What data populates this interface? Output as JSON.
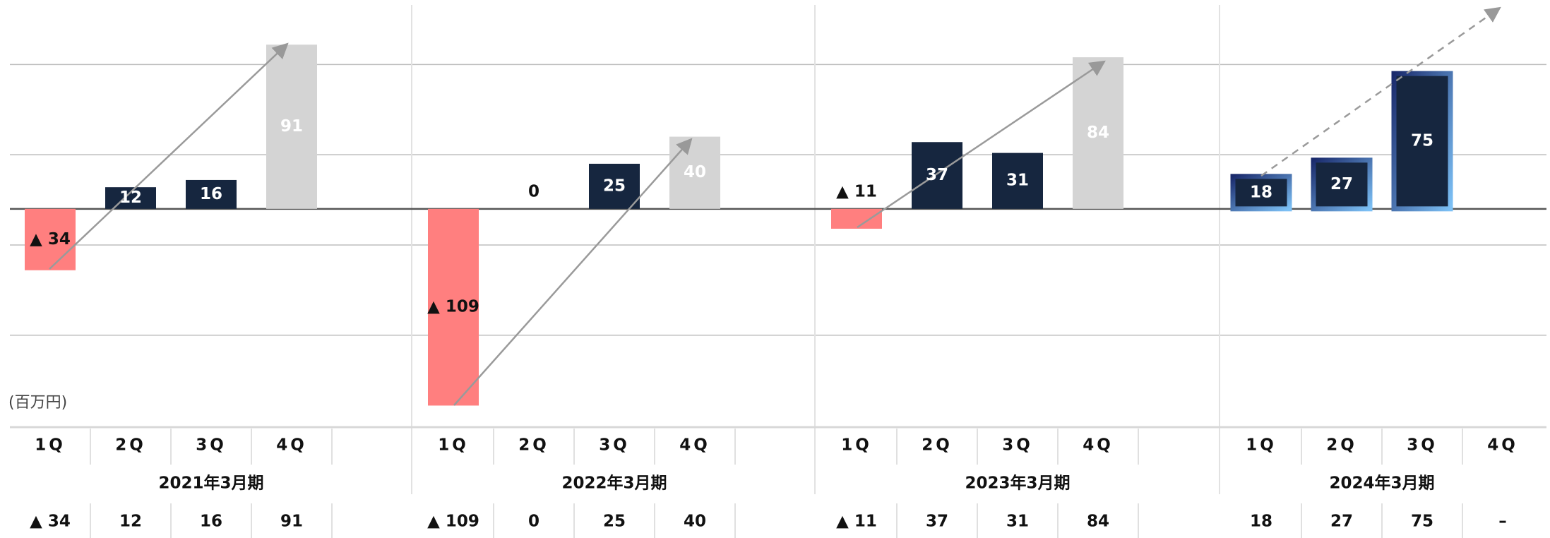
{
  "chart_data": {
    "type": "bar",
    "unit_label": "(百万円)",
    "periods": [
      "2021年3月期",
      "2022年3月期",
      "2023年3月期",
      "2024年3月期"
    ],
    "categories": [
      "1Q",
      "2Q",
      "3Q",
      "4Q",
      "1Q",
      "2Q",
      "3Q",
      "4Q",
      "1Q",
      "2Q",
      "3Q",
      "4Q",
      "1Q",
      "2Q",
      "3Q",
      "4Q"
    ],
    "values": [
      -34,
      12,
      16,
      91,
      -109,
      0,
      25,
      40,
      -11,
      37,
      31,
      84,
      18,
      27,
      75,
      null
    ],
    "value_labels": [
      "▲ 34",
      "12",
      "16",
      "91",
      "▲ 109",
      "0",
      "25",
      "40",
      "▲ 11",
      "37",
      "31",
      "84",
      "18",
      "27",
      "75",
      "–"
    ],
    "colors": [
      "#ff7f7f",
      "#16263f",
      "#16263f",
      "#d4d4d4",
      "#ff7f7f",
      "#16263f",
      "#16263f",
      "#d4d4d4",
      "#ff7f7f",
      "#16263f",
      "#16263f",
      "#d4d4d4",
      "#16263f",
      "#16263f",
      "#16263f",
      "#16263f"
    ],
    "edge_colors": [
      null,
      null,
      null,
      null,
      null,
      null,
      null,
      null,
      null,
      null,
      null,
      null,
      "#5fa8e8",
      "#5fa8e8",
      "#5fa8e8",
      "#5fa8e8"
    ],
    "ylim": [
      -119,
      113
    ],
    "yticks": [
      -70,
      -20,
      30,
      80
    ],
    "grid": true
  }
}
